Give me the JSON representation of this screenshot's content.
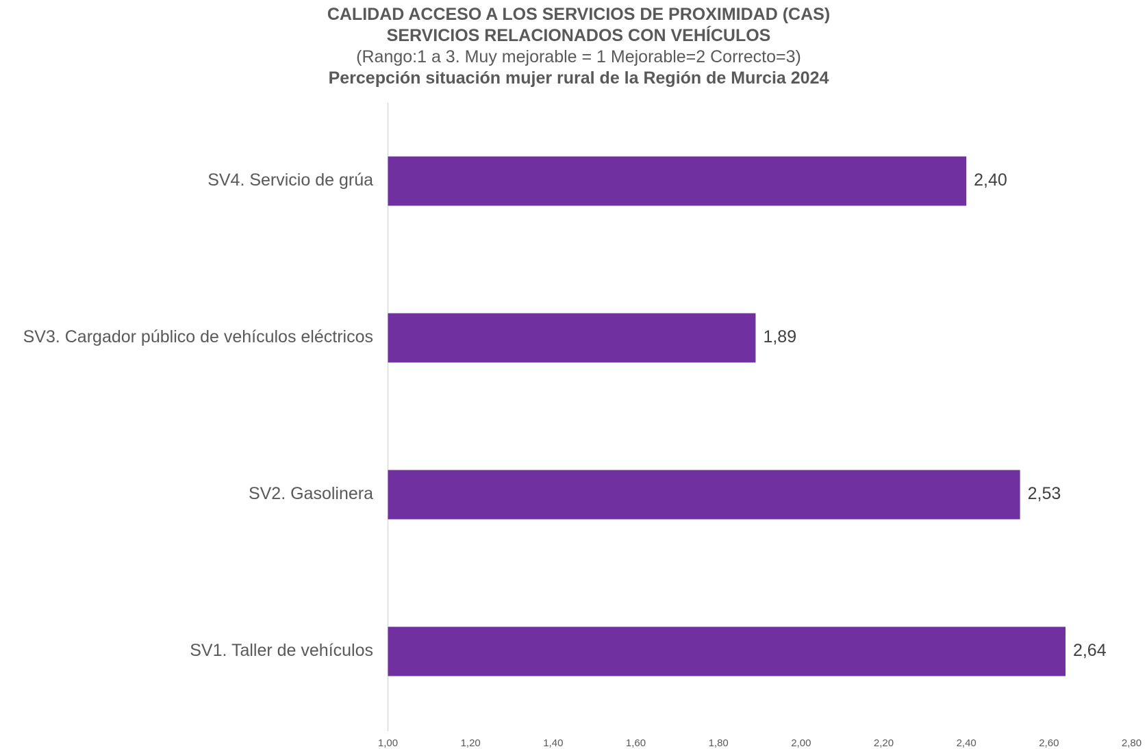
{
  "chart_data": {
    "type": "bar",
    "orientation": "horizontal",
    "title": "CALIDAD ACCESO A LOS SERVICIOS DE PROXIMIDAD (CAS)",
    "title2": "SERVICIOS RELACIONADOS CON VEHÍCULOS",
    "subtitle": "(Rango:1 a 3. Muy mejorable = 1 Mejorable=2 Correcto=3)",
    "subtitle2": "Percepción situación mujer rural de la Región de Murcia 2024",
    "categories": [
      "SV4. Servicio de grúa",
      "SV3. Cargador público de vehículos eléctricos",
      "SV2. Gasolinera",
      "SV1. Taller de vehículos"
    ],
    "values": [
      2.4,
      1.89,
      2.53,
      2.64
    ],
    "value_labels": [
      "2,40",
      "1,89",
      "2,53",
      "2,64"
    ],
    "xlim": [
      1.0,
      2.8
    ],
    "ticks": [
      "1,00",
      "1,20",
      "1,40",
      "1,60",
      "1,80",
      "2,00",
      "2,20",
      "2,40",
      "2,60",
      "2,80"
    ],
    "tick_values": [
      1.0,
      1.2,
      1.4,
      1.6,
      1.8,
      2.0,
      2.2,
      2.4,
      2.6,
      2.8
    ],
    "bar_color": "#7030A0",
    "grid": false,
    "legend": "none"
  }
}
